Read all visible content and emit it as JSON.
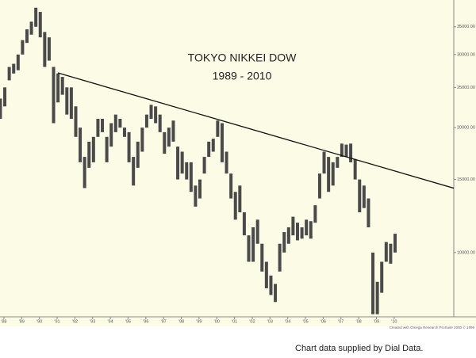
{
  "chart_data": {
    "type": "hilo",
    "title": "TOKYO NIKKEI DOW",
    "subtitle": "1989 - 2010",
    "credit": "Created with Omega Research ProSuite 2000 © 1999",
    "caption": "Chart data supplied by Dial Data.",
    "log_scale": true,
    "color": "#4a4a4a",
    "ylim": [
      7000,
      40600
    ],
    "yticks": [
      {
        "value": 10000,
        "label": "10000.00"
      },
      {
        "value": 15000,
        "label": "15000.00"
      },
      {
        "value": 20000,
        "label": "20000.00"
      },
      {
        "value": 25000,
        "label": "25000.00"
      },
      {
        "value": 30000,
        "label": "30000.00"
      },
      {
        "value": 35000,
        "label": "35000.00"
      }
    ],
    "xlim": [
      1987.78,
      2013.36
    ],
    "xticks": [
      {
        "value": 1988,
        "label": "'88"
      },
      {
        "value": 1989,
        "label": "'89"
      },
      {
        "value": 1990,
        "label": "'90"
      },
      {
        "value": 1991,
        "label": "'91"
      },
      {
        "value": 1992,
        "label": "'92"
      },
      {
        "value": 1993,
        "label": "'93"
      },
      {
        "value": 1994,
        "label": "'94"
      },
      {
        "value": 1995,
        "label": "'95"
      },
      {
        "value": 1996,
        "label": "'96"
      },
      {
        "value": 1997,
        "label": "'97"
      },
      {
        "value": 1998,
        "label": "'98"
      },
      {
        "value": 1999,
        "label": "'99"
      },
      {
        "value": 2000,
        "label": "'00"
      },
      {
        "value": 2001,
        "label": "'01"
      },
      {
        "value": 2002,
        "label": "'02"
      },
      {
        "value": 2003,
        "label": "'03"
      },
      {
        "value": 2004,
        "label": "'04"
      },
      {
        "value": 2005,
        "label": "'05"
      },
      {
        "value": 2006,
        "label": "'06"
      },
      {
        "value": 2007,
        "label": "'07"
      },
      {
        "value": 2008,
        "label": "'08"
      },
      {
        "value": 2009,
        "label": "'09"
      },
      {
        "value": 2010,
        "label": "'10"
      }
    ],
    "x": [
      1987.8,
      1988.05,
      1988.3,
      1988.55,
      1988.8,
      1989.05,
      1989.3,
      1989.55,
      1989.8,
      1990.05,
      1990.3,
      1990.55,
      1990.8,
      1991.05,
      1991.3,
      1991.55,
      1991.8,
      1992.05,
      1992.3,
      1992.55,
      1992.8,
      1993.05,
      1993.3,
      1993.55,
      1993.8,
      1994.05,
      1994.3,
      1994.55,
      1994.8,
      1995.05,
      1995.3,
      1995.55,
      1995.8,
      1996.05,
      1996.3,
      1996.55,
      1996.8,
      1997.05,
      1997.3,
      1997.55,
      1997.8,
      1998.05,
      1998.3,
      1998.55,
      1998.8,
      1999.05,
      1999.3,
      1999.55,
      1999.8,
      2000.05,
      2000.3,
      2000.55,
      2000.8,
      2001.05,
      2001.3,
      2001.55,
      2001.8,
      2002.05,
      2002.3,
      2002.55,
      2002.8,
      2003.05,
      2003.3,
      2003.55,
      2003.8,
      2004.05,
      2004.3,
      2004.55,
      2004.8,
      2005.05,
      2005.3,
      2005.55,
      2005.8,
      2006.05,
      2006.3,
      2006.55,
      2006.8,
      2007.05,
      2007.3,
      2007.55,
      2007.8,
      2008.05,
      2008.3,
      2008.55,
      2008.8,
      2009.05,
      2009.3,
      2009.55,
      2009.8,
      2010.05
    ],
    "high": [
      23500,
      25000,
      28000,
      28500,
      30000,
      32500,
      34500,
      36000,
      38900,
      38000,
      34000,
      33000,
      28000,
      27000,
      26500,
      25000,
      25000,
      22500,
      20000,
      17000,
      18500,
      19000,
      21000,
      21000,
      19000,
      20500,
      21500,
      21000,
      20000,
      19500,
      17000,
      18500,
      20000,
      21500,
      22700,
      22500,
      21500,
      19500,
      20000,
      20800,
      18000,
      17500,
      16500,
      16500,
      14500,
      15000,
      17000,
      18500,
      18800,
      20800,
      20500,
      17500,
      15500,
      14000,
      14500,
      12500,
      11000,
      11500,
      12000,
      10500,
      9500,
      8800,
      8400,
      10500,
      11200,
      11500,
      12200,
      11800,
      11500,
      12000,
      11900,
      13000,
      15500,
      17500,
      17000,
      16500,
      17000,
      18300,
      18200,
      18300,
      16800,
      15000,
      14500,
      13500,
      10000,
      8500,
      9500,
      10600,
      10500,
      11100
    ],
    "low": [
      21000,
      22500,
      26000,
      27000,
      27500,
      30000,
      32000,
      33500,
      35000,
      33000,
      28000,
      29000,
      20500,
      23000,
      24000,
      21500,
      21000,
      19000,
      16500,
      14300,
      16000,
      16500,
      19000,
      19500,
      16500,
      18000,
      19500,
      20000,
      19000,
      16500,
      14500,
      16000,
      17500,
      20000,
      21000,
      20500,
      19500,
      17300,
      18000,
      18500,
      15000,
      15500,
      15000,
      14000,
      12900,
      13500,
      15500,
      17000,
      17500,
      19000,
      16500,
      15500,
      13500,
      12000,
      12500,
      11000,
      9500,
      9500,
      10500,
      9000,
      8200,
      7900,
      7600,
      9000,
      10000,
      10500,
      11000,
      10700,
      10800,
      11000,
      10800,
      11800,
      13500,
      15500,
      14000,
      14500,
      16000,
      17000,
      17000,
      16500,
      15000,
      12500,
      12800,
      11500,
      7100,
      7100,
      8000,
      9500,
      9400,
      10000
    ],
    "trendline": {
      "x": [
        1991.04,
        2013.36
      ],
      "values": [
        27100,
        14290
      ]
    }
  }
}
